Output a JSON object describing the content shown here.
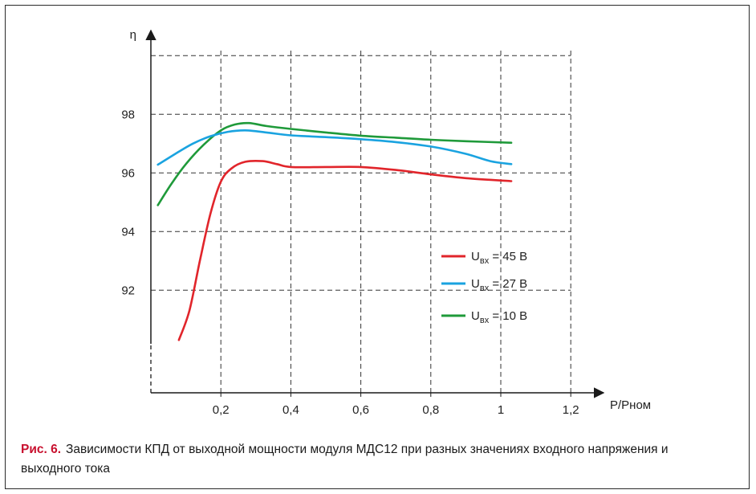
{
  "chart_data": {
    "type": "line",
    "ylabel": "η",
    "xlabel": "P/Pном",
    "xlim": [
      0,
      1.3
    ],
    "ylim": [
      88.5,
      100
    ],
    "x_ticks": [
      "0,2",
      "0,4",
      "0,6",
      "0,8",
      "1",
      "1,2"
    ],
    "x_tick_values": [
      0.2,
      0.4,
      0.6,
      0.8,
      1.0,
      1.2
    ],
    "y_ticks": [
      "92",
      "94",
      "96",
      "98"
    ],
    "y_tick_values": [
      92,
      94,
      96,
      98
    ],
    "grid_x": [
      0.2,
      0.4,
      0.6,
      0.8,
      1.0,
      1.2
    ],
    "grid_y": [
      92,
      94,
      96,
      98,
      100
    ],
    "grid": "dashed",
    "legend_position": "lower-right",
    "series": [
      {
        "name": "Uвх = 45 В",
        "legend_main": "U",
        "legend_sub": "вх",
        "legend_rest": " = 45 В",
        "color": "#e1252b",
        "points": [
          [
            0.08,
            90.3
          ],
          [
            0.11,
            91.3
          ],
          [
            0.14,
            93.0
          ],
          [
            0.17,
            94.6
          ],
          [
            0.2,
            95.7
          ],
          [
            0.23,
            96.15
          ],
          [
            0.27,
            96.38
          ],
          [
            0.32,
            96.4
          ],
          [
            0.36,
            96.3
          ],
          [
            0.4,
            96.2
          ],
          [
            0.5,
            96.2
          ],
          [
            0.6,
            96.2
          ],
          [
            0.7,
            96.1
          ],
          [
            0.8,
            95.95
          ],
          [
            0.9,
            95.82
          ],
          [
            1.03,
            95.72
          ]
        ]
      },
      {
        "name": "Uвх = 27 В",
        "legend_main": "U",
        "legend_sub": "вх",
        "legend_rest": " = 27 В",
        "color": "#1aa3e0",
        "points": [
          [
            0.02,
            96.28
          ],
          [
            0.07,
            96.65
          ],
          [
            0.12,
            97.0
          ],
          [
            0.17,
            97.25
          ],
          [
            0.22,
            97.4
          ],
          [
            0.27,
            97.45
          ],
          [
            0.33,
            97.38
          ],
          [
            0.4,
            97.28
          ],
          [
            0.5,
            97.22
          ],
          [
            0.6,
            97.15
          ],
          [
            0.7,
            97.05
          ],
          [
            0.8,
            96.9
          ],
          [
            0.9,
            96.65
          ],
          [
            0.97,
            96.4
          ],
          [
            1.03,
            96.3
          ]
        ]
      },
      {
        "name": "Uвх = 10 В",
        "legend_main": "U",
        "legend_sub": "вх",
        "legend_rest": " = 10 В",
        "color": "#1f9a3a",
        "points": [
          [
            0.02,
            94.9
          ],
          [
            0.06,
            95.65
          ],
          [
            0.1,
            96.3
          ],
          [
            0.15,
            96.95
          ],
          [
            0.2,
            97.45
          ],
          [
            0.24,
            97.65
          ],
          [
            0.28,
            97.7
          ],
          [
            0.33,
            97.6
          ],
          [
            0.4,
            97.5
          ],
          [
            0.5,
            97.38
          ],
          [
            0.6,
            97.27
          ],
          [
            0.7,
            97.2
          ],
          [
            0.8,
            97.13
          ],
          [
            0.9,
            97.08
          ],
          [
            1.03,
            97.03
          ]
        ]
      }
    ]
  },
  "caption": {
    "lead": "Рис. 6.",
    "text": "Зависимости КПД от выходной мощности модуля МДС12 при разных значениях входного напряжения и выходного тока"
  }
}
